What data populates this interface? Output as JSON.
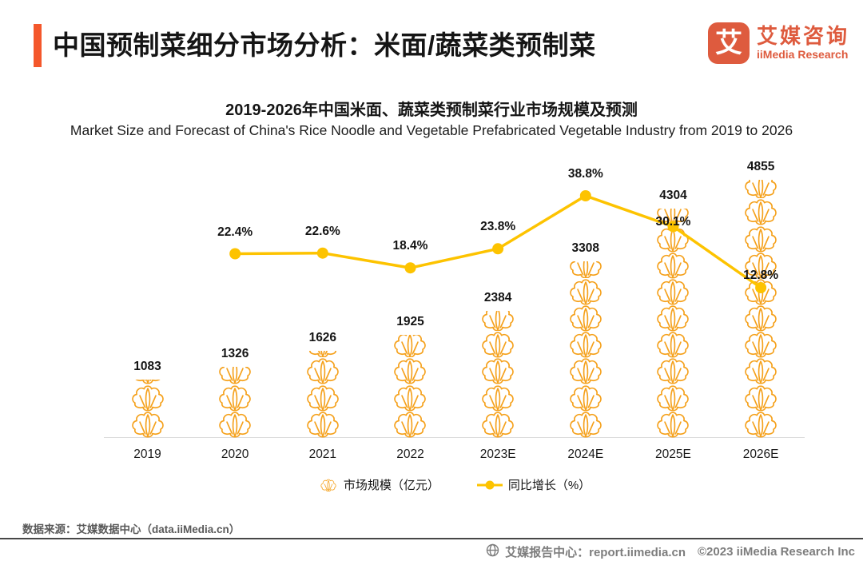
{
  "header": {
    "title": "中国预制菜细分市场分析：米面/蔬菜类预制菜",
    "accent_color": "#F4572B",
    "logo": {
      "mark_char": "艾",
      "name_cn": "艾媒咨询",
      "name_en": "iiMedia Research",
      "color": "#DE5B3E"
    }
  },
  "chart_header": {
    "title_cn": "2019-2026年中国米面、蔬菜类预制菜行业市场规模及预测",
    "subtitle_en": "Market Size and Forecast of China's Rice Noodle and Vegetable Prefabricated Vegetable Industry from 2019 to 2026"
  },
  "chart_data": {
    "type": "pictorial-bar+line",
    "categories": [
      "2019",
      "2020",
      "2021",
      "2022",
      "2023E",
      "2024E",
      "2025E",
      "2026E"
    ],
    "series": [
      {
        "name": "市场规模（亿元）",
        "type": "pictorial-bar",
        "icon": "cabbage-icon",
        "unit_per_icon": 500,
        "values": [
          1083,
          1326,
          1626,
          1925,
          2384,
          3308,
          4304,
          4855
        ]
      },
      {
        "name": "同比增长（%）",
        "type": "line",
        "values": [
          null,
          22.4,
          22.6,
          18.4,
          23.8,
          38.8,
          30.1,
          12.8
        ]
      }
    ],
    "value_labels": [
      "1083",
      "1326",
      "1626",
      "1925",
      "2384",
      "3308",
      "4304",
      "4855"
    ],
    "pct_labels": [
      null,
      "22.4%",
      "22.6%",
      "18.4%",
      "23.8%",
      "38.8%",
      "30.1%",
      "12.8%"
    ],
    "colors": {
      "icon": "#F5A11C",
      "line": "#FDC300"
    },
    "legend": [
      {
        "label": "市场规模（亿元）",
        "marker": "cabbage-icon"
      },
      {
        "label": "同比增长（%）",
        "marker": "line-dot-icon"
      }
    ],
    "grid": false,
    "legend_position": "bottom-center"
  },
  "footer": {
    "source": "数据来源：艾媒数据中心（data.iiMedia.cn）",
    "report_center": "艾媒报告中心：report.iimedia.cn",
    "copyright": "©2023  iiMedia Research Inc"
  }
}
